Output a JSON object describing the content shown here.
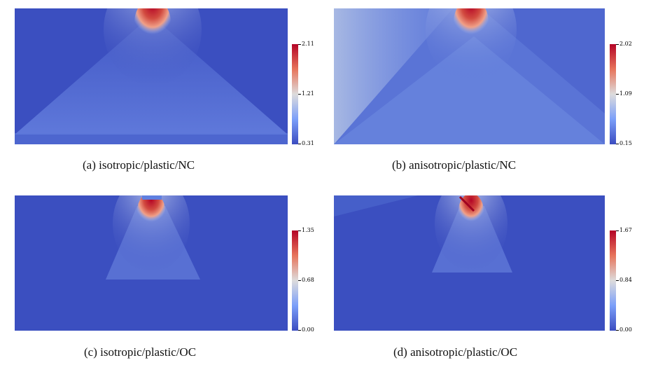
{
  "panels": [
    {
      "caption": "(a) isotropic/plastic/NC",
      "cbar": {
        "max": "2.11",
        "mid": "1.21",
        "min": "0.31"
      }
    },
    {
      "caption": "(b) anisotropic/plastic/NC",
      "cbar": {
        "max": "2.02",
        "mid": "1.09",
        "min": "0.15"
      }
    },
    {
      "caption": "(c) isotropic/plastic/OC",
      "cbar": {
        "max": "1.35",
        "mid": "0.68",
        "min": "0.00"
      }
    },
    {
      "caption": "(d) anisotropic/plastic/OC",
      "cbar": {
        "max": "1.67",
        "mid": "0.84",
        "min": "0.00"
      }
    }
  ],
  "colormap": {
    "low": "#3b4cc0",
    "mid": "#dddcdc",
    "high": "#b40426"
  }
}
